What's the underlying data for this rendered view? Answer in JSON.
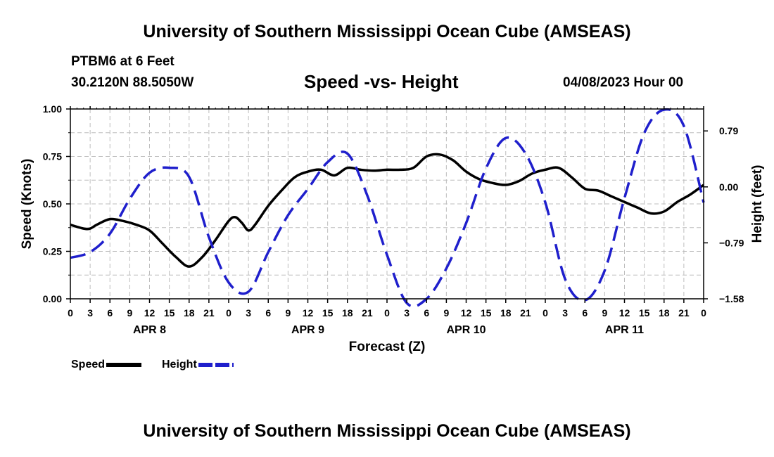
{
  "header": {
    "title": "University of Southern Mississippi Ocean Cube (AMSEAS)",
    "station": "PTBM6 at 6 Feet",
    "coordinates": "30.2120N  88.5050W",
    "subtitle": "Speed -vs- Height",
    "date": "04/08/2023 Hour 00"
  },
  "footer": {
    "title": "University of Southern Mississippi Ocean Cube (AMSEAS)"
  },
  "legend": {
    "speed_label": "Speed",
    "height_label": "Height"
  },
  "colors": {
    "speed": "#000000",
    "height": "#1f1fcc",
    "grid": "#bdbdbd"
  },
  "chart_data": {
    "type": "line",
    "title": "Speed -vs- Height",
    "xlabel": "Forecast (Z)",
    "ylabel": "Speed (Knots)",
    "y2label": "Height (feet)",
    "xlim": [
      0,
      96
    ],
    "ylim": [
      0,
      1
    ],
    "y2lim": [
      -1.58,
      1.1
    ],
    "x_ticks": [
      0,
      3,
      6,
      9,
      12,
      15,
      18,
      21,
      24,
      27,
      30,
      33,
      36,
      39,
      42,
      45,
      48,
      51,
      54,
      57,
      60,
      63,
      66,
      69,
      72,
      75,
      78,
      81,
      84,
      87,
      90,
      93,
      96
    ],
    "x_tick_labels": [
      "0",
      "3",
      "6",
      "9",
      "12",
      "15",
      "18",
      "21",
      "0",
      "3",
      "6",
      "9",
      "12",
      "15",
      "18",
      "21",
      "0",
      "3",
      "6",
      "9",
      "12",
      "15",
      "18",
      "21",
      "0",
      "3",
      "6",
      "9",
      "12",
      "15",
      "18",
      "21",
      "0"
    ],
    "day_labels": [
      {
        "x": 12,
        "label": "APR 8"
      },
      {
        "x": 36,
        "label": "APR 9"
      },
      {
        "x": 60,
        "label": "APR 10"
      },
      {
        "x": 84,
        "label": "APR 11"
      }
    ],
    "y_ticks": [
      0,
      0.25,
      0.5,
      0.75,
      1.0
    ],
    "y_tick_labels": [
      "0.00",
      "0.25",
      "0.50",
      "0.75",
      "1.00"
    ],
    "y2_ticks": [
      0.79,
      0,
      -0.79,
      -1.58
    ],
    "y2_tick_labels": [
      "0.79",
      "0.00",
      "−0.79",
      "−1.58"
    ],
    "grid": true,
    "series": [
      {
        "name": "Speed",
        "axis": "left",
        "style": "solid",
        "x": [
          0,
          2,
          3,
          4,
          6,
          8,
          10,
          12,
          14,
          16,
          18,
          20,
          22,
          24,
          25,
          26,
          27,
          28,
          30,
          32,
          34,
          36,
          38,
          40,
          42,
          44,
          46,
          48,
          50,
          52,
          54,
          56,
          58,
          60,
          62,
          64,
          66,
          68,
          70,
          72,
          74,
          76,
          78,
          80,
          82,
          84,
          86,
          88,
          90,
          92,
          94,
          96
        ],
        "values": [
          0.39,
          0.37,
          0.37,
          0.39,
          0.42,
          0.41,
          0.39,
          0.36,
          0.29,
          0.22,
          0.17,
          0.22,
          0.31,
          0.41,
          0.43,
          0.4,
          0.36,
          0.39,
          0.49,
          0.57,
          0.64,
          0.67,
          0.68,
          0.65,
          0.69,
          0.68,
          0.675,
          0.68,
          0.68,
          0.69,
          0.75,
          0.76,
          0.73,
          0.67,
          0.63,
          0.61,
          0.6,
          0.62,
          0.66,
          0.68,
          0.69,
          0.64,
          0.58,
          0.57,
          0.54,
          0.51,
          0.48,
          0.45,
          0.46,
          0.51,
          0.55,
          0.6
        ]
      },
      {
        "name": "Height",
        "axis": "right",
        "style": "dashed",
        "x": [
          0,
          3,
          6,
          9,
          12,
          15,
          18,
          21,
          24,
          27,
          30,
          33,
          36,
          39,
          42,
          45,
          48,
          51,
          54,
          57,
          60,
          63,
          66,
          69,
          72,
          75,
          78,
          81,
          84,
          87,
          90,
          93,
          96
        ],
        "values": [
          -1.0,
          -0.92,
          -0.66,
          -0.17,
          0.2,
          0.27,
          0.14,
          -0.71,
          -1.35,
          -1.48,
          -0.92,
          -0.4,
          -0.03,
          0.35,
          0.47,
          -0.12,
          -0.96,
          -1.64,
          -1.58,
          -1.15,
          -0.51,
          0.26,
          0.69,
          0.47,
          -0.22,
          -1.3,
          -1.6,
          -1.18,
          -0.16,
          0.76,
          1.09,
          0.86,
          -0.22
        ]
      }
    ]
  }
}
